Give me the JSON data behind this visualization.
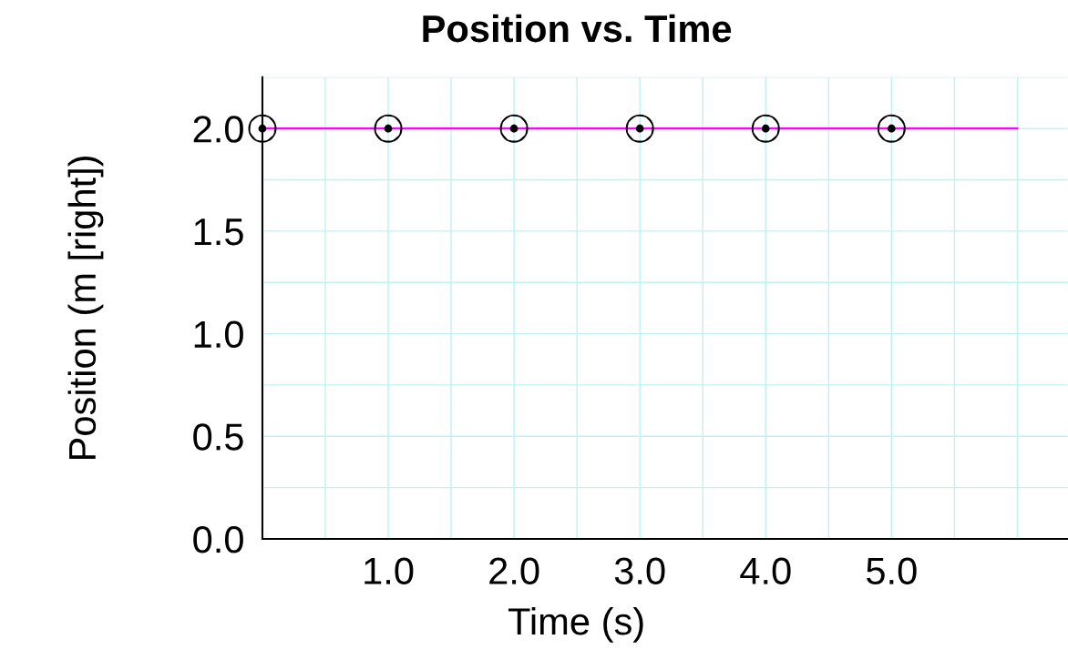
{
  "chart_data": {
    "type": "line",
    "title": "Position vs. Time",
    "xlabel": "Time (s)",
    "ylabel": "Position (m [right])",
    "xlim": [
      0,
      6.4
    ],
    "ylim": [
      0,
      2.25
    ],
    "xticks": [
      {
        "value": 1.0,
        "label": "1.0"
      },
      {
        "value": 2.0,
        "label": "2.0"
      },
      {
        "value": 3.0,
        "label": "3.0"
      },
      {
        "value": 4.0,
        "label": "4.0"
      },
      {
        "value": 5.0,
        "label": "5.0"
      }
    ],
    "yticks": [
      {
        "value": 0,
        "label": "0.0"
      },
      {
        "value": 0.5,
        "label": "0.5"
      },
      {
        "value": 1.0,
        "label": "1.0"
      },
      {
        "value": 1.5,
        "label": "1.5"
      },
      {
        "value": 2.0,
        "label": "2.0"
      }
    ],
    "grid": true,
    "series": [
      {
        "color": "#ff00ff",
        "x": [
          0,
          6
        ],
        "values": [
          2.0,
          2.0
        ],
        "marker": "none",
        "line_style": "solid"
      },
      {
        "type": "scatter",
        "color": "#000000",
        "x": [
          0,
          1,
          2,
          3,
          4,
          5
        ],
        "values": [
          2.0,
          2.0,
          2.0,
          2.0,
          2.0,
          2.0
        ],
        "marker": "circle"
      }
    ]
  }
}
